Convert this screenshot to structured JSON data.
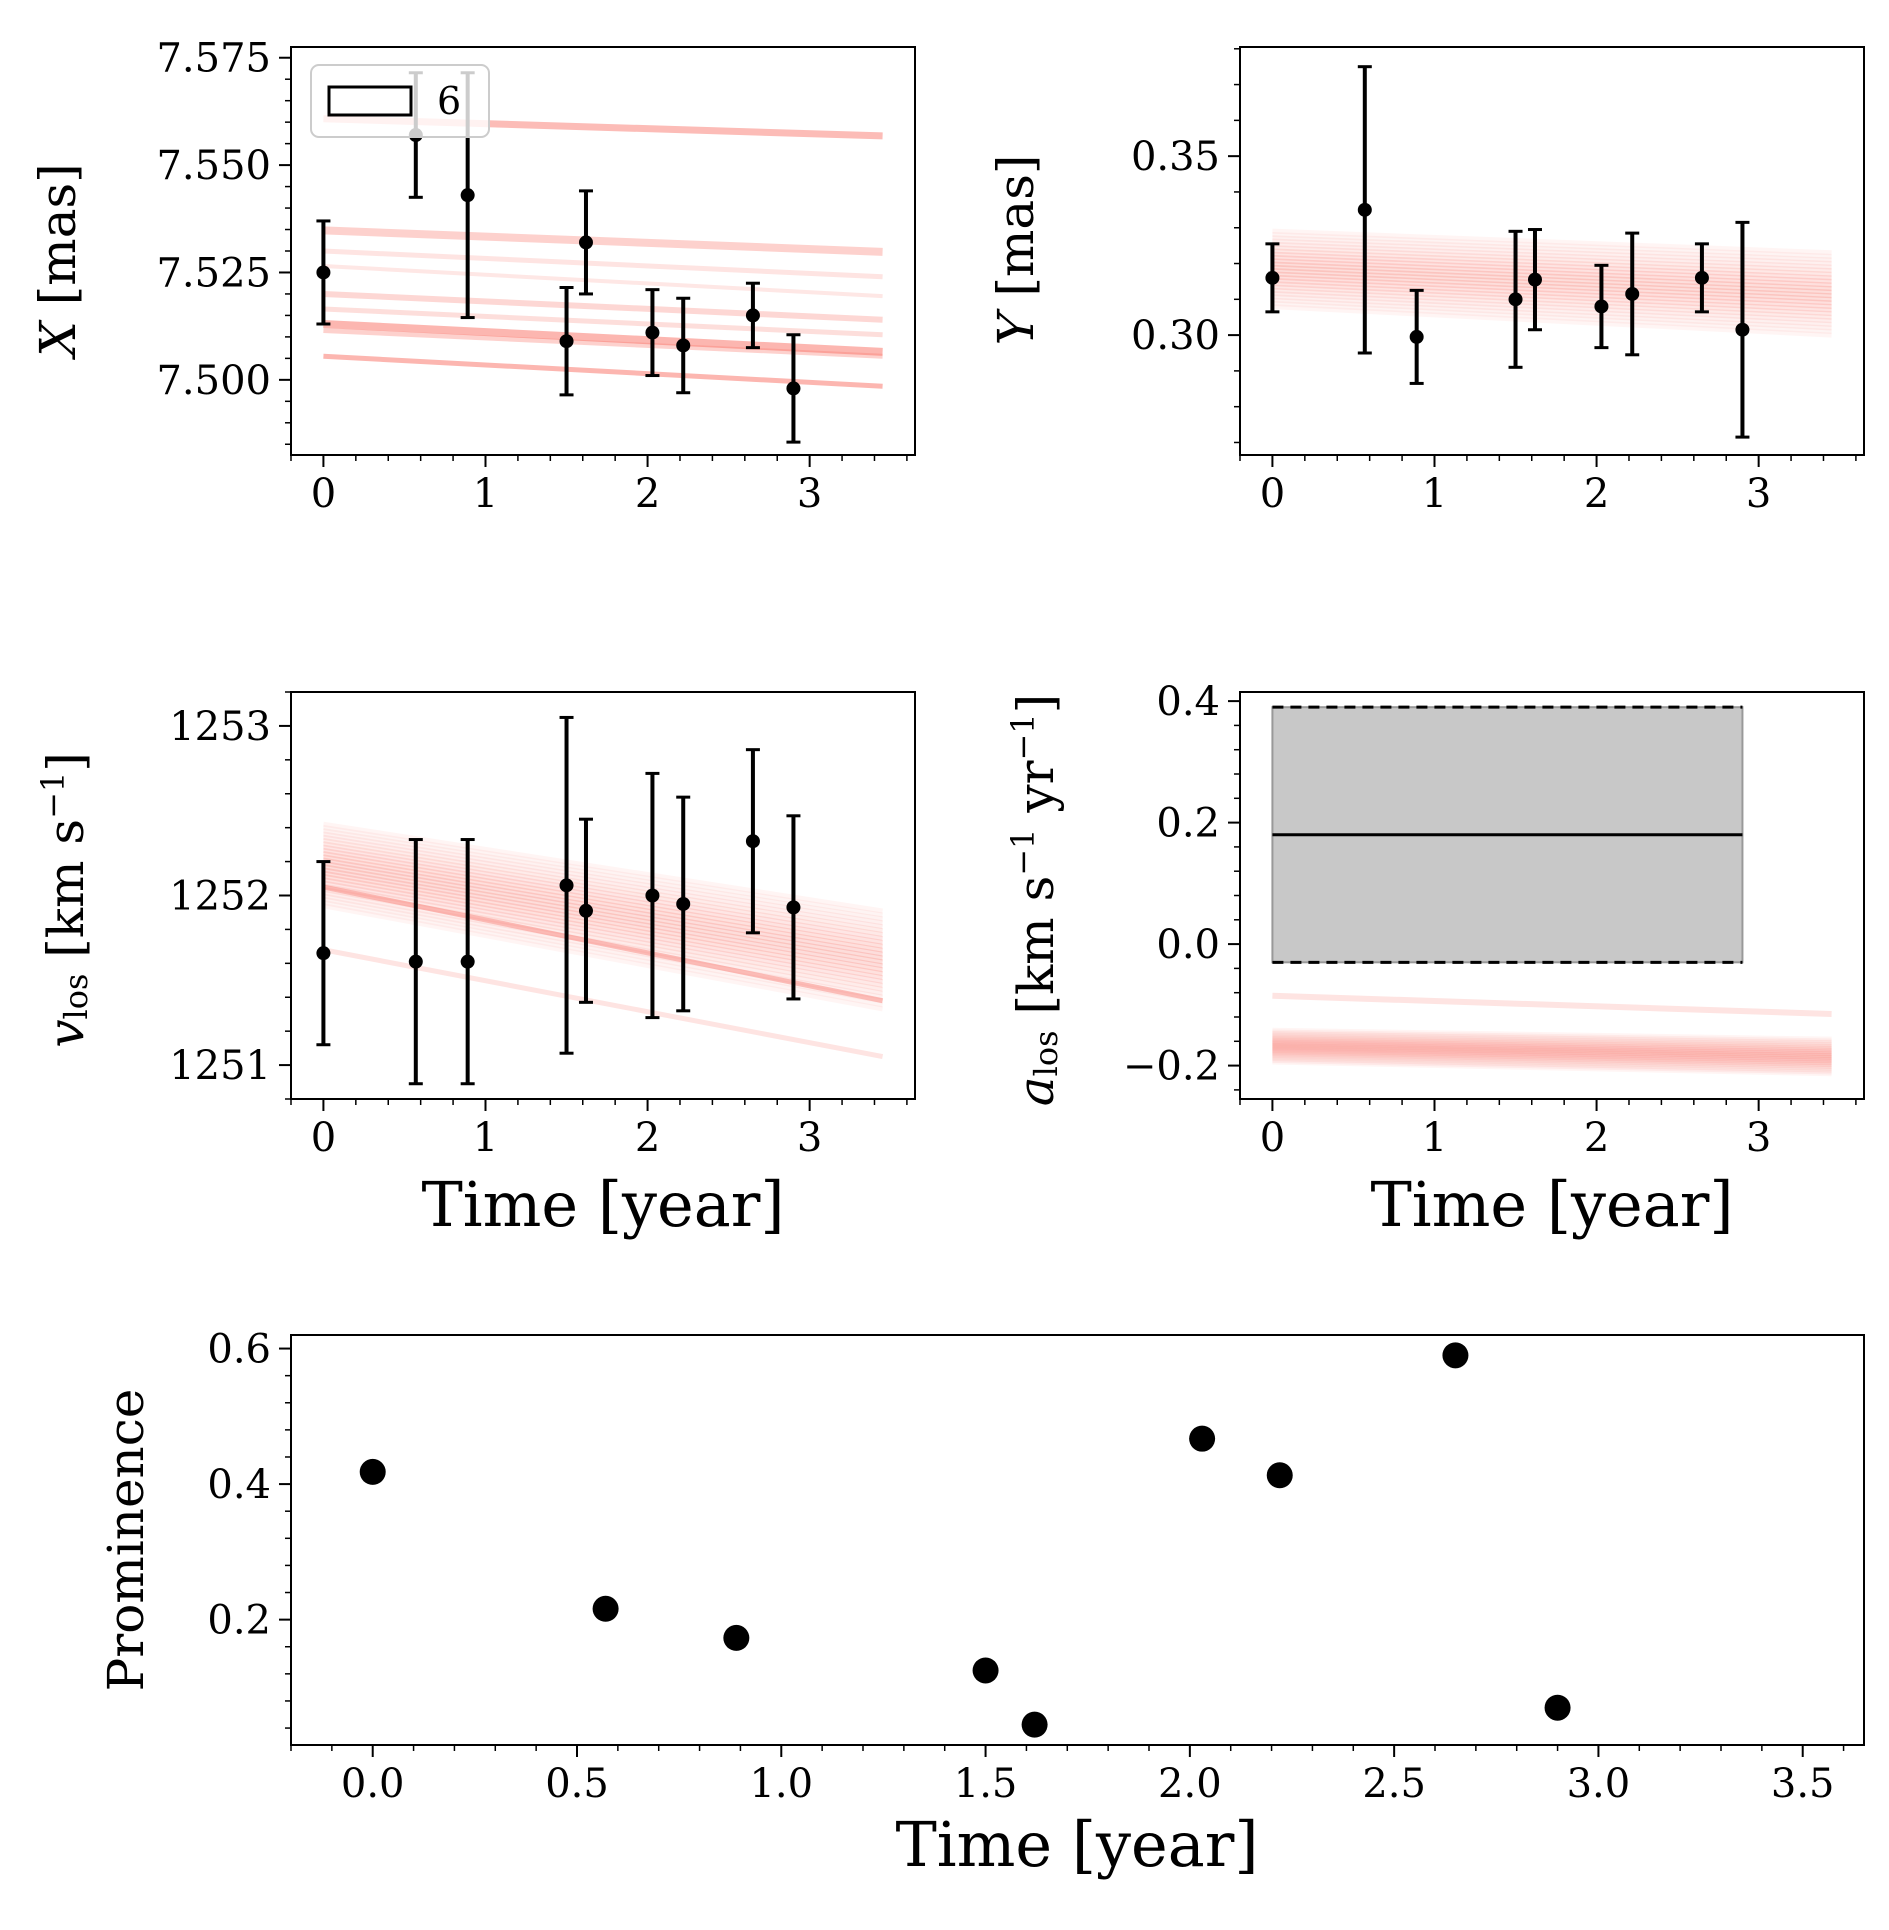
{
  "colors": {
    "model_line": "#f97a70",
    "points": "#000000",
    "band_fill": "#c8c8c8",
    "axes": "#000000"
  },
  "chart_data": [
    {
      "id": "x",
      "type": "line",
      "title": "",
      "xlabel": "",
      "ylabel": "X [mas]",
      "xlim": [
        -0.2,
        3.65
      ],
      "ylim": [
        7.4825,
        7.5775
      ],
      "xticks": [
        0,
        1,
        2,
        3
      ],
      "xtick_labels": [
        "0",
        "1",
        "2",
        "3"
      ],
      "yticks": [
        7.5,
        7.525,
        7.55,
        7.575
      ],
      "ytick_labels": [
        "7.500",
        "7.525",
        "7.550",
        "7.575"
      ],
      "legend": {
        "label": "6",
        "position": "upper-left"
      },
      "model_lines": [
        {
          "y0": 7.5608,
          "y1": 7.5568,
          "w": 7,
          "a": 0.5
        },
        {
          "y0": 7.5348,
          "y1": 7.5298,
          "w": 8,
          "a": 0.35
        },
        {
          "y0": 7.53,
          "y1": 7.524,
          "w": 5,
          "a": 0.2
        },
        {
          "y0": 7.5265,
          "y1": 7.5195,
          "w": 4,
          "a": 0.18
        },
        {
          "y0": 7.52,
          "y1": 7.514,
          "w": 6,
          "a": 0.3
        },
        {
          "y0": 7.5165,
          "y1": 7.5105,
          "w": 5,
          "a": 0.25
        },
        {
          "y0": 7.513,
          "y1": 7.5065,
          "w": 8,
          "a": 0.55
        },
        {
          "y0": 7.5115,
          "y1": 7.5055,
          "w": 5,
          "a": 0.35
        },
        {
          "y0": 7.5055,
          "y1": 7.4985,
          "w": 5,
          "a": 0.55
        }
      ],
      "t": [
        0.0,
        0.57,
        0.89,
        1.5,
        1.62,
        2.03,
        2.22,
        2.65,
        2.9
      ],
      "y": [
        7.525,
        7.557,
        7.543,
        7.509,
        7.532,
        7.511,
        7.508,
        7.515,
        7.498
      ],
      "yerr": [
        0.012,
        0.0145,
        0.0285,
        0.0125,
        0.012,
        0.01,
        0.011,
        0.0075,
        0.0125
      ]
    },
    {
      "id": "y",
      "type": "line",
      "title": "",
      "xlabel": "",
      "ylabel": "Y [mas]",
      "xlim": [
        -0.2,
        3.65
      ],
      "ylim": [
        0.2665,
        0.3805
      ],
      "xticks": [
        0,
        1,
        2,
        3
      ],
      "xtick_labels": [
        "0",
        "1",
        "2",
        "3"
      ],
      "yticks": [
        0.3,
        0.35
      ],
      "ytick_labels": [
        "0.30",
        "0.35"
      ],
      "model_band": {
        "c0": 0.3185,
        "c1": 0.3115,
        "spread0": 0.022,
        "spread1": 0.024,
        "n": 24
      },
      "t": [
        0.0,
        0.57,
        0.89,
        1.5,
        1.62,
        2.03,
        2.22,
        2.65,
        2.9
      ],
      "y": [
        0.316,
        0.335,
        0.2995,
        0.31,
        0.3155,
        0.308,
        0.3115,
        0.316,
        0.3015
      ],
      "yerr": [
        0.0095,
        0.04,
        0.013,
        0.019,
        0.014,
        0.0115,
        0.017,
        0.0095,
        0.03
      ]
    },
    {
      "id": "vlos",
      "type": "line",
      "title": "",
      "xlabel": "Time [year]",
      "ylabel": "v_los [km s^-1]",
      "xlim": [
        -0.2,
        3.65
      ],
      "ylim": [
        1250.8,
        1253.2
      ],
      "xticks": [
        0,
        1,
        2,
        3
      ],
      "xtick_labels": [
        "0",
        "1",
        "2",
        "3"
      ],
      "yticks": [
        1251,
        1252,
        1253
      ],
      "ytick_labels": [
        "1251",
        "1252",
        "1253"
      ],
      "model_band": {
        "c0": 1252.18,
        "c1": 1251.62,
        "spread0": 0.5,
        "spread1": 0.6,
        "n": 26
      },
      "model_lines": [
        {
          "y0": 1252.05,
          "y1": 1251.38,
          "w": 5,
          "a": 0.45
        },
        {
          "y0": 1251.68,
          "y1": 1251.05,
          "w": 5,
          "a": 0.2
        }
      ],
      "t": [
        0.0,
        0.57,
        0.89,
        1.5,
        1.62,
        2.03,
        2.22,
        2.65,
        2.9
      ],
      "y": [
        1251.66,
        1251.61,
        1251.61,
        1252.06,
        1251.91,
        1252.0,
        1251.95,
        1252.32,
        1251.93
      ],
      "yerr": [
        0.54,
        0.72,
        0.72,
        0.99,
        0.54,
        0.72,
        0.63,
        0.54,
        0.54
      ]
    },
    {
      "id": "alos",
      "type": "area",
      "title": "",
      "xlabel": "Time [year]",
      "ylabel": "a_los [km s^-1 yr^-1]",
      "xlim": [
        -0.2,
        3.65
      ],
      "ylim": [
        -0.255,
        0.415
      ],
      "xticks": [
        0,
        1,
        2,
        3
      ],
      "xtick_labels": [
        "0",
        "1",
        "2",
        "3"
      ],
      "yticks": [
        -0.2,
        0.0,
        0.2,
        0.4
      ],
      "ytick_labels": [
        "−0.2",
        "0.0",
        "0.2",
        "0.4"
      ],
      "band": {
        "t0": 0.0,
        "t1": 2.9,
        "center": 0.18,
        "lower": -0.03,
        "upper": 0.39
      },
      "model_band": {
        "c0": -0.168,
        "c1": -0.185,
        "spread0": 0.055,
        "spread1": 0.06,
        "n": 20
      },
      "model_lines": [
        {
          "y0": -0.085,
          "y1": -0.115,
          "w": 6,
          "a": 0.2
        }
      ]
    },
    {
      "id": "prominence",
      "type": "scatter",
      "title": "",
      "xlabel": "Time [year]",
      "ylabel": "Prominence",
      "xlim": [
        -0.2,
        3.65
      ],
      "ylim": [
        0.015,
        0.62
      ],
      "xticks": [
        0.0,
        0.5,
        1.0,
        1.5,
        2.0,
        2.5,
        3.0,
        3.5
      ],
      "xtick_labels": [
        "0.0",
        "0.5",
        "1.0",
        "1.5",
        "2.0",
        "2.5",
        "3.0",
        "3.5"
      ],
      "yticks": [
        0.2,
        0.4,
        0.6
      ],
      "ytick_labels": [
        "0.2",
        "0.4",
        "0.6"
      ],
      "t": [
        0.0,
        0.57,
        0.89,
        1.5,
        1.62,
        2.03,
        2.22,
        2.65,
        2.9
      ],
      "y": [
        0.418,
        0.216,
        0.173,
        0.125,
        0.045,
        0.467,
        0.413,
        0.59,
        0.07
      ]
    }
  ]
}
